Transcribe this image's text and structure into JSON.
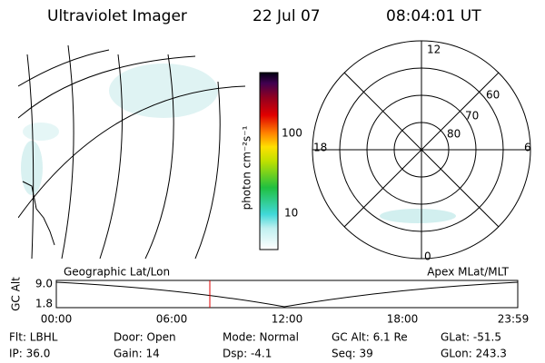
{
  "header": {
    "title": "Ultraviolet Imager",
    "date": "22 Jul 07",
    "time": "08:04:01 UT"
  },
  "colorbar": {
    "label": "photon cm⁻²s⁻¹",
    "ticks": [
      "100",
      "10"
    ]
  },
  "polar": {
    "mlt_labels": [
      "12",
      "6",
      "0",
      "18"
    ],
    "lat_labels": [
      "60",
      "70",
      "80"
    ]
  },
  "orbit": {
    "left_label": "Geographic Lat/Lon",
    "right_label": "Apex MLat/MLT",
    "ylabel": "GC Alt",
    "yticks": [
      "9.0",
      "1.8"
    ],
    "xticks": [
      "00:00",
      "06:00",
      "12:00",
      "18:00",
      "23:59"
    ]
  },
  "footer": {
    "rows": [
      [
        "Flt: LBHL",
        "Door: Open",
        "Mode: Normal",
        "GC Alt: 6.1 Re",
        "GLat: -51.5"
      ],
      [
        "IP: 36.0",
        "Gain: 14",
        "Dsp: -4.1",
        "Seq: 39",
        "GLon: 243.3"
      ]
    ]
  }
}
